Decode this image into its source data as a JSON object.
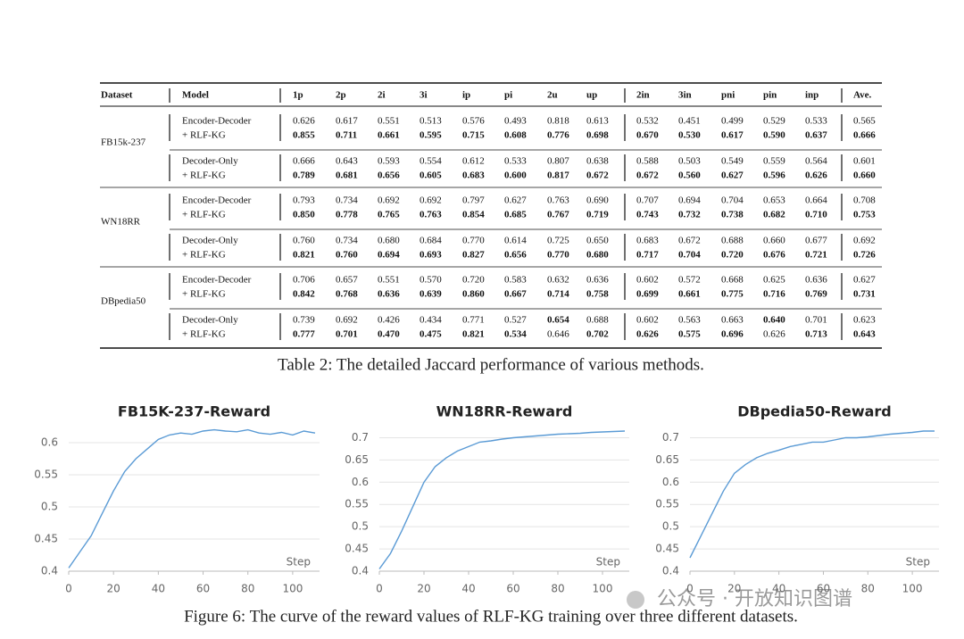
{
  "table": {
    "columns": [
      "Dataset",
      "Model",
      "1p",
      "2p",
      "2i",
      "3i",
      "ip",
      "pi",
      "2u",
      "up",
      "2in",
      "3in",
      "pni",
      "pin",
      "inp",
      "Ave."
    ],
    "groups": [
      {
        "dataset": "FB15k-237",
        "rows": [
          {
            "model": "Encoder-Decoder",
            "values": [
              "0.626",
              "0.617",
              "0.551",
              "0.513",
              "0.576",
              "0.493",
              "0.818",
              "0.613",
              "0.532",
              "0.451",
              "0.499",
              "0.529",
              "0.533",
              "0.565"
            ],
            "bold_columns": []
          },
          {
            "model": "+ RLF-KG",
            "values": [
              "0.855",
              "0.711",
              "0.661",
              "0.595",
              "0.715",
              "0.608",
              "0.776",
              "0.698",
              "0.670",
              "0.530",
              "0.617",
              "0.590",
              "0.637",
              "0.666"
            ],
            "bold_columns": [
              0,
              1,
              2,
              3,
              4,
              5,
              6,
              7,
              8,
              9,
              10,
              11,
              12,
              13
            ]
          },
          {
            "model": "Decoder-Only",
            "values": [
              "0.666",
              "0.643",
              "0.593",
              "0.554",
              "0.612",
              "0.533",
              "0.807",
              "0.638",
              "0.588",
              "0.503",
              "0.549",
              "0.559",
              "0.564",
              "0.601"
            ],
            "bold_columns": []
          },
          {
            "model": "+ RLF-KG",
            "values": [
              "0.789",
              "0.681",
              "0.656",
              "0.605",
              "0.683",
              "0.600",
              "0.817",
              "0.672",
              "0.672",
              "0.560",
              "0.627",
              "0.596",
              "0.626",
              "0.660"
            ],
            "bold_columns": [
              0,
              1,
              2,
              3,
              4,
              5,
              6,
              7,
              8,
              9,
              10,
              11,
              12,
              13
            ]
          }
        ]
      },
      {
        "dataset": "WN18RR",
        "rows": [
          {
            "model": "Encoder-Decoder",
            "values": [
              "0.793",
              "0.734",
              "0.692",
              "0.692",
              "0.797",
              "0.627",
              "0.763",
              "0.690",
              "0.707",
              "0.694",
              "0.704",
              "0.653",
              "0.664",
              "0.708"
            ],
            "bold_columns": []
          },
          {
            "model": "+ RLF-KG",
            "values": [
              "0.850",
              "0.778",
              "0.765",
              "0.763",
              "0.854",
              "0.685",
              "0.767",
              "0.719",
              "0.743",
              "0.732",
              "0.738",
              "0.682",
              "0.710",
              "0.753"
            ],
            "bold_columns": [
              0,
              1,
              2,
              3,
              4,
              5,
              6,
              7,
              8,
              9,
              10,
              11,
              12,
              13
            ]
          },
          {
            "model": "Decoder-Only",
            "values": [
              "0.760",
              "0.734",
              "0.680",
              "0.684",
              "0.770",
              "0.614",
              "0.725",
              "0.650",
              "0.683",
              "0.672",
              "0.688",
              "0.660",
              "0.677",
              "0.692"
            ],
            "bold_columns": []
          },
          {
            "model": "+ RLF-KG",
            "values": [
              "0.821",
              "0.760",
              "0.694",
              "0.693",
              "0.827",
              "0.656",
              "0.770",
              "0.680",
              "0.717",
              "0.704",
              "0.720",
              "0.676",
              "0.721",
              "0.726"
            ],
            "bold_columns": [
              0,
              1,
              2,
              3,
              4,
              5,
              6,
              7,
              8,
              9,
              10,
              11,
              12,
              13
            ]
          }
        ]
      },
      {
        "dataset": "DBpedia50",
        "rows": [
          {
            "model": "Encoder-Decoder",
            "values": [
              "0.706",
              "0.657",
              "0.551",
              "0.570",
              "0.720",
              "0.583",
              "0.632",
              "0.636",
              "0.602",
              "0.572",
              "0.668",
              "0.625",
              "0.636",
              "0.627"
            ],
            "bold_columns": []
          },
          {
            "model": "+ RLF-KG",
            "values": [
              "0.842",
              "0.768",
              "0.636",
              "0.639",
              "0.860",
              "0.667",
              "0.714",
              "0.758",
              "0.699",
              "0.661",
              "0.775",
              "0.716",
              "0.769",
              "0.731"
            ],
            "bold_columns": [
              0,
              1,
              2,
              3,
              4,
              5,
              6,
              7,
              8,
              9,
              10,
              11,
              12,
              13
            ]
          },
          {
            "model": "Decoder-Only",
            "values": [
              "0.739",
              "0.692",
              "0.426",
              "0.434",
              "0.771",
              "0.527",
              "0.654",
              "0.688",
              "0.602",
              "0.563",
              "0.663",
              "0.640",
              "0.701",
              "0.623"
            ],
            "bold_columns": [
              6,
              11
            ]
          },
          {
            "model": "+ RLF-KG",
            "values": [
              "0.777",
              "0.701",
              "0.470",
              "0.475",
              "0.821",
              "0.534",
              "0.646",
              "0.702",
              "0.626",
              "0.575",
              "0.696",
              "0.626",
              "0.713",
              "0.643"
            ],
            "bold_columns": [
              0,
              1,
              2,
              3,
              4,
              5,
              7,
              8,
              9,
              10,
              12,
              13
            ]
          }
        ]
      }
    ]
  },
  "table_caption": "Table 2: The detailed Jaccard performance of various methods.",
  "chart_data": [
    {
      "type": "line",
      "title": "FB15K-237-Reward",
      "x_label": "Step",
      "x": [
        0,
        5,
        10,
        15,
        20,
        25,
        30,
        35,
        40,
        45,
        50,
        55,
        60,
        65,
        70,
        75,
        80,
        85,
        90,
        95,
        100,
        105,
        110
      ],
      "series": [
        {
          "color": "#5b9bd5",
          "values": [
            0.405,
            0.43,
            0.455,
            0.49,
            0.525,
            0.555,
            0.575,
            0.59,
            0.605,
            0.612,
            0.615,
            0.613,
            0.618,
            0.62,
            0.618,
            0.617,
            0.62,
            0.615,
            0.613,
            0.616,
            0.612,
            0.618,
            0.615
          ]
        }
      ],
      "xlim": [
        0,
        112
      ],
      "xticks": [
        0,
        20,
        40,
        60,
        80,
        100
      ],
      "ylim": [
        0.4,
        0.625
      ],
      "yticks": [
        0.4,
        0.45,
        0.5,
        0.55,
        0.6
      ],
      "grid": true
    },
    {
      "type": "line",
      "title": "WN18RR-Reward",
      "x_label": "Step",
      "x": [
        0,
        5,
        10,
        15,
        20,
        25,
        30,
        35,
        40,
        45,
        50,
        55,
        60,
        65,
        70,
        75,
        80,
        85,
        90,
        95,
        100,
        105,
        110
      ],
      "series": [
        {
          "color": "#5b9bd5",
          "values": [
            0.405,
            0.44,
            0.49,
            0.545,
            0.6,
            0.635,
            0.655,
            0.67,
            0.68,
            0.69,
            0.693,
            0.697,
            0.7,
            0.702,
            0.704,
            0.706,
            0.708,
            0.709,
            0.71,
            0.712,
            0.713,
            0.714,
            0.715
          ]
        }
      ],
      "xlim": [
        0,
        112
      ],
      "xticks": [
        0,
        20,
        40,
        60,
        80,
        100
      ],
      "ylim": [
        0.4,
        0.725
      ],
      "yticks": [
        0.4,
        0.45,
        0.5,
        0.55,
        0.6,
        0.65,
        0.7
      ],
      "grid": true
    },
    {
      "type": "line",
      "title": "DBpedia50-Reward",
      "x_label": "Step",
      "x": [
        0,
        5,
        10,
        15,
        20,
        25,
        30,
        35,
        40,
        45,
        50,
        55,
        60,
        65,
        70,
        75,
        80,
        85,
        90,
        95,
        100,
        105,
        110
      ],
      "series": [
        {
          "color": "#5b9bd5",
          "values": [
            0.43,
            0.48,
            0.53,
            0.58,
            0.62,
            0.64,
            0.655,
            0.665,
            0.672,
            0.68,
            0.685,
            0.69,
            0.69,
            0.695,
            0.7,
            0.7,
            0.702,
            0.705,
            0.708,
            0.71,
            0.712,
            0.715,
            0.715
          ]
        }
      ],
      "xlim": [
        0,
        112
      ],
      "xticks": [
        0,
        20,
        40,
        60,
        80,
        100
      ],
      "ylim": [
        0.4,
        0.725
      ],
      "yticks": [
        0.4,
        0.45,
        0.5,
        0.55,
        0.6,
        0.65,
        0.7
      ],
      "grid": true
    }
  ],
  "figure_caption": "Figure 6: The curve of the reward values of RLF-KG training over three different datasets.",
  "watermark": "公众号 · 开放知识图谱"
}
